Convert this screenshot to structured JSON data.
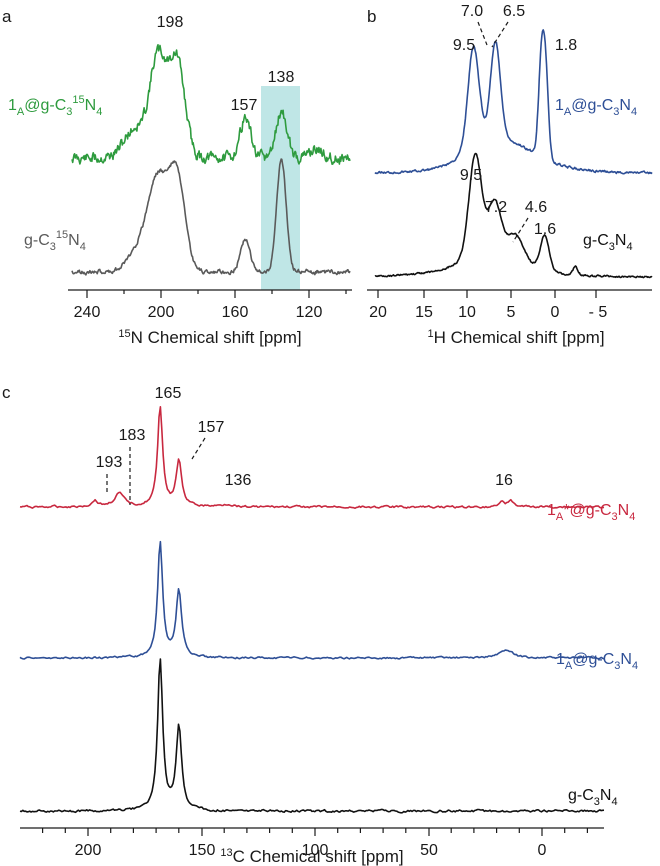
{
  "colors": {
    "green": "#2e9b3e",
    "gray": "#5a5a5a",
    "blue": "#2e4f96",
    "black": "#111111",
    "red": "#c8283f",
    "highlight": "#bfe6e6"
  },
  "chart_data": [
    {
      "panel": "a",
      "type": "line",
      "xlabel": "15N Chemical shift [ppm]",
      "xlim": [
        250,
        100
      ],
      "x_reversed": true,
      "xticks": [
        240,
        200,
        160,
        120
      ],
      "xtick_labels": [
        "240",
        "200",
        "160",
        "120"
      ],
      "highlight_range": [
        148,
        128
      ],
      "series": [
        {
          "name": "1A@g-C3 15N4",
          "color": "green",
          "peaks": [
            [
              198,
              1.0
            ],
            [
              157,
              0.4
            ],
            [
              138,
              0.45
            ]
          ]
        },
        {
          "name": "g-C3 15N4",
          "color": "gray",
          "peaks": [
            [
              198,
              1.0
            ],
            [
              157,
              0.25
            ],
            [
              138,
              1.1
            ]
          ]
        }
      ],
      "annotations": [
        {
          "text": "198",
          "x": 198
        },
        {
          "text": "157",
          "x": 157
        },
        {
          "text": "138",
          "x": 138
        }
      ]
    },
    {
      "panel": "b",
      "type": "line",
      "xlabel": "1H Chemical shift [ppm]",
      "xlim": [
        22,
        -10
      ],
      "x_reversed": true,
      "xticks": [
        20,
        15,
        10,
        5,
        0,
        -5
      ],
      "xtick_labels": [
        "20",
        "15",
        "10",
        "5",
        "0",
        "- 5"
      ],
      "series": [
        {
          "name": "1A@g-C3N4",
          "color": "blue",
          "peaks": [
            [
              9.5,
              0.95
            ],
            [
              7.0,
              0.98
            ],
            [
              6.5,
              0.9
            ],
            [
              1.8,
              1.0
            ]
          ]
        },
        {
          "name": "g-C3N4",
          "color": "black",
          "peaks": [
            [
              9.5,
              1.0
            ],
            [
              7.2,
              0.7
            ],
            [
              4.6,
              0.3
            ],
            [
              1.6,
              0.3
            ]
          ]
        }
      ],
      "annotations": [
        {
          "text": "7.0",
          "x": 7.0
        },
        {
          "text": "6.5",
          "x": 6.5
        },
        {
          "text": "9.5",
          "x": 9.5
        },
        {
          "text": "1.8",
          "x": 1.8
        },
        {
          "text": "9.5",
          "x": 9.5
        },
        {
          "text": "7.2",
          "x": 7.2
        },
        {
          "text": "4.6",
          "x": 4.6
        },
        {
          "text": "1.6",
          "x": 1.6
        }
      ]
    },
    {
      "panel": "c",
      "type": "line",
      "xlabel": "13C Chemical shift [ppm]",
      "xlim": [
        225,
        -25
      ],
      "x_reversed": true,
      "xticks": [
        200,
        150,
        100,
        50,
        0
      ],
      "xtick_labels": [
        "200",
        "150",
        "100",
        "50",
        "0"
      ],
      "series": [
        {
          "name": "1A*@g-C3N4",
          "color": "red",
          "peaks": [
            [
              193,
              0.05
            ],
            [
              183,
              0.12
            ],
            [
              165,
              1.0
            ],
            [
              157,
              0.43
            ],
            [
              136,
              0.03
            ],
            [
              16,
              0.08
            ]
          ]
        },
        {
          "name": "1A@g-C3N4",
          "color": "blue",
          "peaks": [
            [
              165,
              1.0
            ],
            [
              157,
              0.5
            ],
            [
              16,
              0.03
            ]
          ]
        },
        {
          "name": "g-C3N4",
          "color": "black",
          "peaks": [
            [
              165,
              1.0
            ],
            [
              157,
              0.5
            ]
          ]
        }
      ],
      "annotations": [
        {
          "text": "165",
          "x": 165
        },
        {
          "text": "183",
          "x": 183
        },
        {
          "text": "157",
          "x": 157
        },
        {
          "text": "193",
          "x": 193
        },
        {
          "text": "136",
          "x": 136
        },
        {
          "text": "16",
          "x": 16
        }
      ]
    }
  ],
  "panels": {
    "a": {
      "letter": "a"
    },
    "b": {
      "letter": "b"
    },
    "c": {
      "letter": "c"
    }
  },
  "labels": {
    "a_green_main": "1",
    "a_green_sub": "A",
    "a_green_mid": "@g-C",
    "a_green_sub2": "3",
    "a_green_sup": "15",
    "a_green_end": "N",
    "a_green_sub3": "4",
    "a_gray_main": "g-C",
    "a_gray_sub": "3",
    "a_gray_sup": "15",
    "a_gray_end": "N",
    "a_gray_sub2": "4",
    "a_xlabel_sup": "15",
    "a_xlabel": "N Chemical shift [ppm]",
    "b_blue_main": "1",
    "b_blue_sub": "A",
    "b_blue_mid": "@g-C",
    "b_blue_sub2": "3",
    "b_blue_end": "N",
    "b_blue_sub3": "4",
    "b_black_main": "g-C",
    "b_black_sub": "3",
    "b_black_end": "N",
    "b_black_sub2": "4",
    "b_xlabel_sup": "1",
    "b_xlabel": "H Chemical shift [ppm]",
    "c_red_main": "1",
    "c_red_sub": "A",
    "c_red_mid": "*@g-C",
    "c_red_sub2": "3",
    "c_red_end": "N",
    "c_red_sub3": "4",
    "c_blue_main": "1",
    "c_blue_sub": "A",
    "c_blue_mid": "@g-C",
    "c_blue_sub2": "3",
    "c_blue_end": "N",
    "c_blue_sub3": "4",
    "c_black_main": "g-C",
    "c_black_sub": "3",
    "c_black_end": "N",
    "c_black_sub2": "4",
    "c_xlabel_sup": "13",
    "c_xlabel": "C Chemical shift [ppm]"
  }
}
